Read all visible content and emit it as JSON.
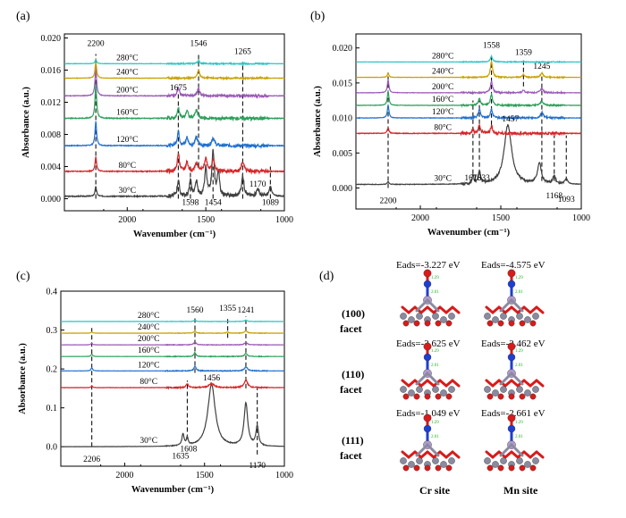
{
  "figure": {
    "background": "#ffffff"
  },
  "chart_data": [
    {
      "panel": "(a)",
      "type": "line",
      "xlabel": "Wavenumber (cm⁻¹)",
      "ylabel": "Absorbance (a.u.)",
      "xlim": [
        2400,
        1000
      ],
      "ylim": [
        -0.0015,
        0.0205
      ],
      "xticks": [
        2000,
        1500,
        1000
      ],
      "yticks": [
        0.0,
        0.004,
        0.008,
        0.012,
        0.016,
        0.02
      ],
      "ytick_labels": [
        "0.000",
        "0.004",
        "0.008",
        "0.012",
        "0.016",
        "0.020"
      ],
      "grid": false,
      "series": [
        {
          "name": "30°C",
          "color": "#404040",
          "baseline": 0.0003,
          "label_x": 2000,
          "peaks": [
            [
              2200,
              0.0012,
              6
            ],
            [
              1675,
              0.002,
              8
            ],
            [
              1598,
              0.0022,
              7
            ],
            [
              1560,
              0.0018,
              8
            ],
            [
              1500,
              0.0035,
              8
            ],
            [
              1454,
              0.0055,
              9
            ],
            [
              1420,
              0.003,
              8
            ],
            [
              1265,
              0.0025,
              10
            ],
            [
              1170,
              0.0009,
              10
            ],
            [
              1089,
              0.0012,
              10
            ]
          ],
          "noise": 0.00025,
          "seed": 3
        },
        {
          "name": "80°C",
          "color": "#d62728",
          "baseline": 0.0034,
          "label_x": 2000,
          "peaks": [
            [
              2200,
              0.0018,
              6
            ],
            [
              1675,
              0.0022,
              8
            ],
            [
              1620,
              0.0012,
              8
            ],
            [
              1560,
              0.001,
              10
            ],
            [
              1500,
              0.0016,
              10
            ],
            [
              1454,
              0.0015,
              10
            ],
            [
              1265,
              0.0012,
              10
            ]
          ],
          "noise": 0.00022,
          "seed": 5
        },
        {
          "name": "120°C",
          "color": "#1f6fd1",
          "baseline": 0.0066,
          "label_x": 2000,
          "peaks": [
            [
              2200,
              0.003,
              6
            ],
            [
              1675,
              0.0018,
              8
            ],
            [
              1620,
              0.001,
              8
            ],
            [
              1560,
              0.001,
              10
            ],
            [
              1454,
              0.001,
              10
            ]
          ],
          "noise": 0.0002,
          "seed": 7
        },
        {
          "name": "160°C",
          "color": "#2ca05a",
          "baseline": 0.01,
          "label_x": 2000,
          "peaks": [
            [
              2200,
              0.0042,
              6
            ],
            [
              1675,
              0.0012,
              8
            ],
            [
              1620,
              0.001,
              8
            ],
            [
              1560,
              0.001,
              10
            ]
          ],
          "noise": 0.0002,
          "seed": 9
        },
        {
          "name": "200°C",
          "color": "#9b59b6",
          "baseline": 0.0128,
          "label_x": 2000,
          "peaks": [
            [
              2200,
              0.0035,
              6
            ],
            [
              1675,
              0.001,
              8
            ],
            [
              1546,
              0.001,
              8
            ]
          ],
          "noise": 0.00015,
          "seed": 11
        },
        {
          "name": "240°C",
          "color": "#c9a000",
          "baseline": 0.015,
          "label_x": 2000,
          "peaks": [
            [
              2200,
              0.002,
              6
            ],
            [
              1546,
              0.001,
              8
            ]
          ],
          "noise": 0.0001,
          "seed": 13
        },
        {
          "name": "280°C",
          "color": "#2ec4c4",
          "baseline": 0.0168,
          "label_x": 2000,
          "peaks": [
            [
              2200,
              0.0005,
              6
            ],
            [
              1546,
              0.0004,
              8
            ]
          ],
          "noise": 8e-05,
          "seed": 15
        }
      ],
      "annotations": [
        {
          "text": "2200",
          "x": 2200,
          "y": 0.019
        },
        {
          "text": "1546",
          "x": 1546,
          "y": 0.019
        },
        {
          "text": "1265",
          "x": 1265,
          "y": 0.018
        },
        {
          "text": "1675",
          "x": 1675,
          "y": 0.0135
        },
        {
          "text": "1598",
          "x": 1598,
          "y": -0.0008
        },
        {
          "text": "1454",
          "x": 1454,
          "y": -0.0008
        },
        {
          "text": "1170",
          "x": 1170,
          "y": 0.0015
        },
        {
          "text": "1089",
          "x": 1089,
          "y": -0.0008
        }
      ],
      "dashed_lines": [
        {
          "x": 2200,
          "y0": 0.0,
          "y1": 0.018
        },
        {
          "x": 1675,
          "y0": 0.0,
          "y1": 0.013
        },
        {
          "x": 1598,
          "y0": 0.0,
          "y1": 0.004
        },
        {
          "x": 1546,
          "y0": 0.004,
          "y1": 0.018
        },
        {
          "x": 1454,
          "y0": 0.0,
          "y1": 0.004
        },
        {
          "x": 1265,
          "y0": 0.0,
          "y1": 0.017
        },
        {
          "x": 1089,
          "y0": 0.0,
          "y1": 0.004
        }
      ]
    },
    {
      "panel": "(b)",
      "type": "line",
      "xlabel": "Wavenumber (cm⁻¹)",
      "ylabel": "Absorbance (a.u.)",
      "xlim": [
        2400,
        1000
      ],
      "ylim": [
        -0.003,
        0.022
      ],
      "xticks": [
        2000,
        1500,
        1000
      ],
      "yticks": [
        0.0,
        0.005,
        0.01,
        0.015,
        0.02
      ],
      "ytick_labels": [
        "0.000",
        "0.005",
        "0.010",
        "0.015",
        "0.020"
      ],
      "grid": false,
      "series": [
        {
          "name": "30°C",
          "color": "#404040",
          "baseline": 0.0005,
          "label_x": 1860,
          "peaks": [
            [
              2200,
              0.0004,
              6
            ],
            [
              1673,
              0.0012,
              6
            ],
            [
              1633,
              0.0018,
              8
            ],
            [
              1456,
              0.0085,
              28
            ],
            [
              1260,
              0.003,
              14
            ],
            [
              1168,
              0.0012,
              10
            ],
            [
              1093,
              0.0008,
              10
            ]
          ],
          "noise": 0.00015,
          "seed": 21
        },
        {
          "name": "80°C",
          "color": "#d62728",
          "baseline": 0.0078,
          "label_x": 1860,
          "peaks": [
            [
              2200,
              0.0008,
              6
            ],
            [
              1673,
              0.0005,
              6
            ],
            [
              1633,
              0.0012,
              8
            ],
            [
              1558,
              0.001,
              8
            ]
          ],
          "noise": 0.0002,
          "seed": 23
        },
        {
          "name": "120°C",
          "color": "#1f6fd1",
          "baseline": 0.01,
          "label_x": 1860,
          "peaks": [
            [
              2200,
              0.0018,
              6
            ],
            [
              1633,
              0.0012,
              8
            ],
            [
              1558,
              0.0012,
              8
            ],
            [
              1245,
              0.0008,
              10
            ]
          ],
          "noise": 0.00012,
          "seed": 25
        },
        {
          "name": "160°C",
          "color": "#2ca05a",
          "baseline": 0.0118,
          "label_x": 1860,
          "peaks": [
            [
              2200,
              0.002,
              6
            ],
            [
              1633,
              0.001,
              8
            ],
            [
              1558,
              0.0015,
              8
            ],
            [
              1245,
              0.0006,
              10
            ]
          ],
          "noise": 0.0001,
          "seed": 27
        },
        {
          "name": "200°C",
          "color": "#9b59b6",
          "baseline": 0.0136,
          "label_x": 1860,
          "peaks": [
            [
              2200,
              0.0018,
              6
            ],
            [
              1558,
              0.0016,
              8
            ],
            [
              1359,
              0.0004,
              8
            ],
            [
              1245,
              0.0006,
              10
            ]
          ],
          "noise": 0.0001,
          "seed": 29
        },
        {
          "name": "240°C",
          "color": "#c9a000",
          "baseline": 0.0158,
          "label_x": 1860,
          "peaks": [
            [
              2200,
              0.0006,
              6
            ],
            [
              1558,
              0.0022,
              8
            ],
            [
              1359,
              0.0004,
              8
            ],
            [
              1245,
              0.0006,
              10
            ]
          ],
          "noise": 8e-05,
          "seed": 31
        },
        {
          "name": "280°C",
          "color": "#2ec4c4",
          "baseline": 0.018,
          "label_x": 1860,
          "peaks": [
            [
              1558,
              0.0008,
              8
            ]
          ],
          "noise": 6e-05,
          "seed": 33
        }
      ],
      "annotations": [
        {
          "text": "1558",
          "x": 1558,
          "y": 0.02
        },
        {
          "text": "1359",
          "x": 1359,
          "y": 0.019
        },
        {
          "text": "1245",
          "x": 1245,
          "y": 0.017
        },
        {
          "text": "1457",
          "x": 1440,
          "y": 0.0095
        },
        {
          "text": "2200",
          "x": 2200,
          "y": -0.0022
        },
        {
          "text": "1673",
          "x": 1673,
          "y": 0.0011
        },
        {
          "text": "1633",
          "x": 1620,
          "y": 0.0011
        },
        {
          "text": "1168",
          "x": 1168,
          "y": -0.0015
        },
        {
          "text": "1093",
          "x": 1093,
          "y": -0.002
        }
      ],
      "dashed_lines": [
        {
          "x": 2200,
          "y0": 0.0,
          "y1": 0.0165
        },
        {
          "x": 1673,
          "y0": 0.002,
          "y1": 0.0125
        },
        {
          "x": 1633,
          "y0": 0.002,
          "y1": 0.0125
        },
        {
          "x": 1558,
          "y0": 0.009,
          "y1": 0.019
        },
        {
          "x": 1359,
          "y0": 0.0145,
          "y1": 0.0185
        },
        {
          "x": 1245,
          "y0": 0.001,
          "y1": 0.016
        },
        {
          "x": 1168,
          "y0": 0.001,
          "y1": 0.0075
        },
        {
          "x": 1093,
          "y0": 0.001,
          "y1": 0.0075
        }
      ]
    },
    {
      "panel": "(c)",
      "type": "line",
      "xlabel": "Wavenumber (cm⁻¹)",
      "ylabel": "Absorbance (a.u.)",
      "xlim": [
        2400,
        1000
      ],
      "ylim": [
        -0.05,
        0.4
      ],
      "xticks": [
        2000,
        1500,
        1000
      ],
      "yticks": [
        0.0,
        0.1,
        0.2,
        0.3,
        0.4
      ],
      "ytick_labels": [
        "0.0",
        "0.1",
        "0.2",
        "0.3",
        "0.4"
      ],
      "grid": false,
      "series": [
        {
          "name": "30°C",
          "color": "#404040",
          "baseline": 0.0,
          "label_x": 1850,
          "peaks": [
            [
              1635,
              0.03,
              8
            ],
            [
              1608,
              0.02,
              6
            ],
            [
              1456,
              0.16,
              28
            ],
            [
              1241,
              0.11,
              14
            ],
            [
              1170,
              0.05,
              10
            ]
          ],
          "noise": 0.001,
          "seed": 41
        },
        {
          "name": "80°C",
          "color": "#d62728",
          "baseline": 0.152,
          "label_x": 1850,
          "peaks": [
            [
              2206,
              0.004,
              6
            ],
            [
              1608,
              0.01,
              8
            ],
            [
              1456,
              0.01,
              20
            ],
            [
              1241,
              0.02,
              12
            ]
          ],
          "noise": 0.0015,
          "seed": 43
        },
        {
          "name": "120°C",
          "color": "#1f6fd1",
          "baseline": 0.195,
          "label_x": 1850,
          "peaks": [
            [
              2206,
              0.008,
              6
            ],
            [
              1560,
              0.012,
              8
            ],
            [
              1241,
              0.01,
              12
            ]
          ],
          "noise": 0.001,
          "seed": 45
        },
        {
          "name": "160°C",
          "color": "#2ca05a",
          "baseline": 0.232,
          "label_x": 1850,
          "peaks": [
            [
              2206,
              0.006,
              6
            ],
            [
              1560,
              0.01,
              8
            ],
            [
              1241,
              0.008,
              10
            ]
          ],
          "noise": 0.0008,
          "seed": 47
        },
        {
          "name": "200°C",
          "color": "#9b59b6",
          "baseline": 0.262,
          "label_x": 1850,
          "peaks": [
            [
              2206,
              0.004,
              6
            ],
            [
              1560,
              0.008,
              8
            ],
            [
              1241,
              0.006,
              10
            ]
          ],
          "noise": 0.0007,
          "seed": 49
        },
        {
          "name": "240°C",
          "color": "#c9a000",
          "baseline": 0.292,
          "label_x": 1850,
          "peaks": [
            [
              2206,
              0.003,
              6
            ],
            [
              1560,
              0.006,
              8
            ],
            [
              1355,
              0.003,
              8
            ],
            [
              1241,
              0.006,
              10
            ]
          ],
          "noise": 0.0006,
          "seed": 51
        },
        {
          "name": "280°C",
          "color": "#2ec4c4",
          "baseline": 0.322,
          "label_x": 1850,
          "peaks": [
            [
              1560,
              0.003,
              8
            ],
            [
              1241,
              0.003,
              10
            ]
          ],
          "noise": 0.0005,
          "seed": 53
        }
      ],
      "annotations": [
        {
          "text": "1560",
          "x": 1560,
          "y": 0.345
        },
        {
          "text": "1355",
          "x": 1355,
          "y": 0.35
        },
        {
          "text": "1241",
          "x": 1241,
          "y": 0.345
        },
        {
          "text": "1456",
          "x": 1456,
          "y": 0.17
        },
        {
          "text": "2206",
          "x": 2206,
          "y": -0.038
        },
        {
          "text": "1635",
          "x": 1650,
          "y": -0.03
        },
        {
          "text": "1608",
          "x": 1600,
          "y": -0.012
        },
        {
          "text": "1170",
          "x": 1170,
          "y": -0.055
        }
      ],
      "dashed_lines": [
        {
          "x": 2206,
          "y0": 0.0,
          "y1": 0.31
        },
        {
          "x": 1608,
          "y0": 0.02,
          "y1": 0.17
        },
        {
          "x": 1560,
          "y0": 0.19,
          "y1": 0.335
        },
        {
          "x": 1355,
          "y0": 0.28,
          "y1": 0.335
        },
        {
          "x": 1241,
          "y0": 0.15,
          "y1": 0.335
        },
        {
          "x": 1170,
          "y0": -0.02,
          "y1": 0.15
        }
      ]
    }
  ],
  "panel_d": {
    "label": "(d)",
    "rows": [
      {
        "facet": "(100)",
        "facet_word": "facet",
        "cr_energy": "Eads=-3.227 eV",
        "mn_energy": "Eads=-4.575 eV"
      },
      {
        "facet": "(110)",
        "facet_word": "facet",
        "cr_energy": "Eads=-2.625 eV",
        "mn_energy": "Eads=-2.462 eV"
      },
      {
        "facet": "(111)",
        "facet_word": "facet",
        "cr_energy": "Eads=-1.049 eV",
        "mn_energy": "Eads=-2.661 eV"
      }
    ],
    "col_labels": [
      "Cr site",
      "Mn site"
    ],
    "colors": {
      "oxygen": "#d81b1b",
      "nitrogen": "#1f3fd1",
      "metal": "#8a8aa0",
      "metal_center": "#b09ad0",
      "bond_label": "#20b020"
    }
  }
}
